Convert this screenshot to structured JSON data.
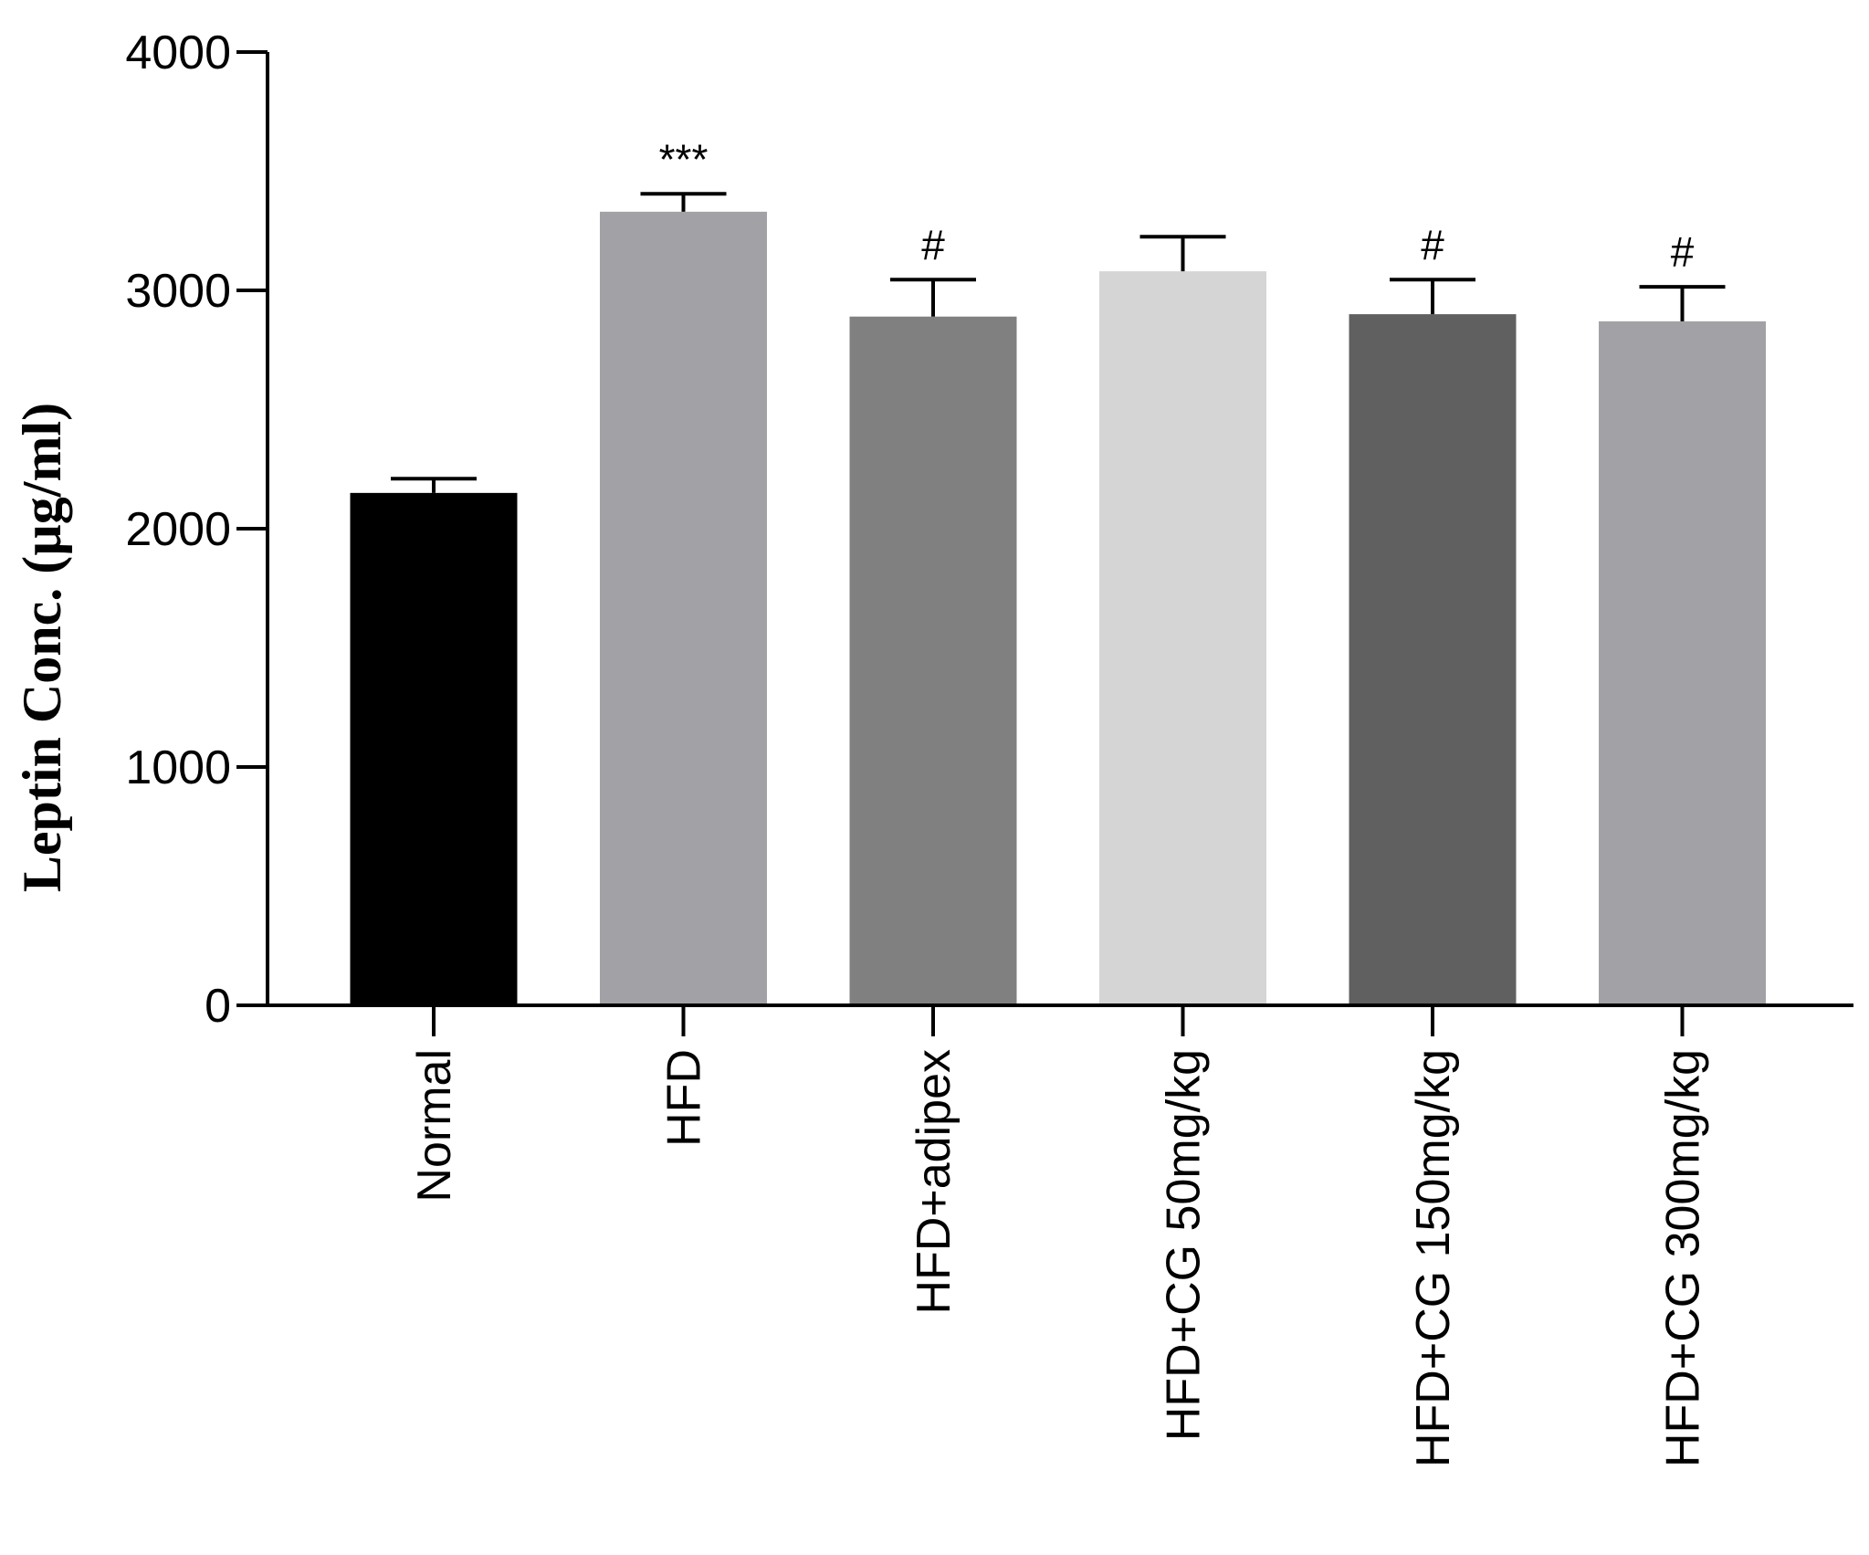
{
  "chart_data": {
    "type": "bar",
    "categories": [
      "Normal",
      "HFD",
      "HFD+adipex",
      "HFD+CG 50mg/kg",
      "HFD+CG 150mg/kg",
      "HFD+CG 300mg/kg"
    ],
    "values": [
      2150,
      3330,
      2890,
      3080,
      2900,
      2870
    ],
    "errors": [
      60,
      75,
      155,
      145,
      145,
      145
    ],
    "annotations": [
      "",
      "***",
      "#",
      "",
      "#",
      "#"
    ],
    "colors": [
      "#000000",
      "#a2a2a6",
      "#808080",
      "#d5d5d5",
      "#606060",
      "#a2a2a6"
    ],
    "ylabel": "Leptin Conc. (µg/ml)",
    "xlabel": "",
    "title": "",
    "ylim": [
      0,
      4000
    ],
    "yticks": [
      0,
      1000,
      2000,
      3000,
      4000
    ],
    "grid": false,
    "legend": "none"
  }
}
